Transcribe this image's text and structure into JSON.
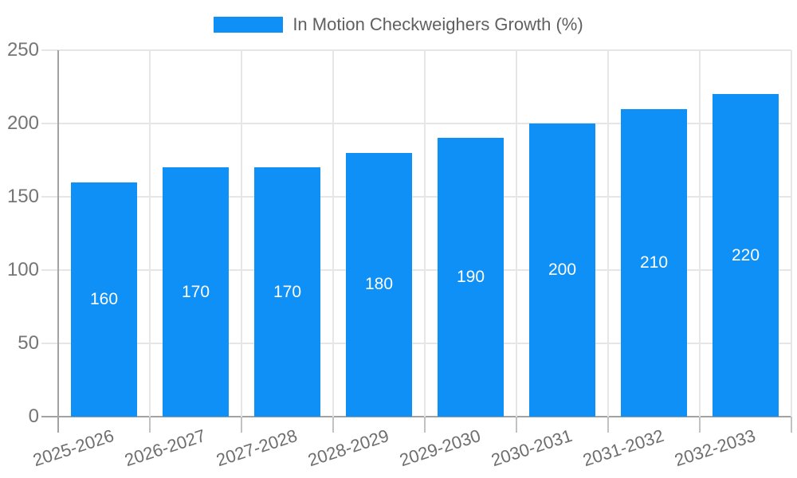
{
  "legend": {
    "label": "In Motion Checkweighers Growth (%)"
  },
  "colors": {
    "bar": "#0e90f6",
    "bar_label": "#ffffff",
    "grid": "#e6e6e6",
    "axis": "#a3a3a3",
    "tick": "#c2c2c2",
    "y_label_text": "#757575",
    "x_label_text": "#6e6e6e",
    "legend_text": "#606060",
    "background": "#ffffff"
  },
  "chart_data": {
    "type": "bar",
    "title": "",
    "legend_entries": [
      "In Motion Checkweighers Growth (%)"
    ],
    "legend_position": "top",
    "categories": [
      "2025-2026",
      "2026-2027",
      "2027-2028",
      "2028-2029",
      "2029-2030",
      "2030-2031",
      "2031-2032",
      "2032-2033"
    ],
    "values": [
      160,
      170,
      170,
      180,
      190,
      200,
      210,
      220
    ],
    "bar_labels_visible": true,
    "xlabel": "",
    "ylabel": "",
    "ylim": [
      0,
      250
    ],
    "yticks": [
      0,
      50,
      100,
      150,
      200,
      250
    ],
    "grid": true,
    "x_label_rotation_deg": -18
  }
}
